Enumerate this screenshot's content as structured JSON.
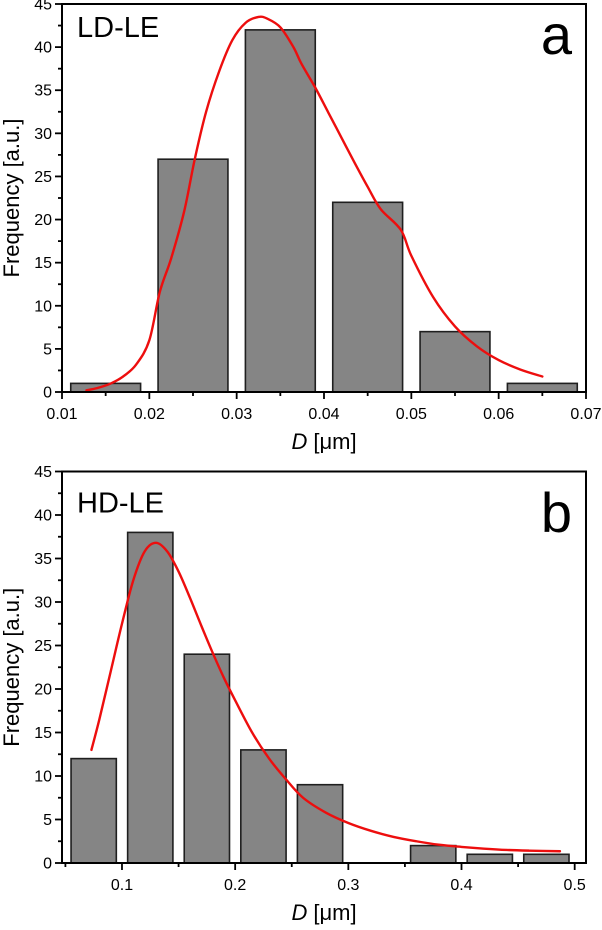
{
  "figure": {
    "background": "#ffffff",
    "description": "Two stacked particle-size histograms with red lognormal fit curves"
  },
  "colors": {
    "bar_fill": "#858585",
    "bar_border": "#1f1f1f",
    "curve": "#ed0e0e",
    "axis": "#000000",
    "text": "#000000",
    "background": "#ffffff"
  },
  "chart_data": [
    {
      "type": "bar",
      "panel_label": "a",
      "title": "LD-LE",
      "ylabel": "Frequency [a.u.]",
      "xlabel_italic": "D",
      "xlabel_unit": "[μm]",
      "xlim": [
        0.01,
        0.07
      ],
      "ylim": [
        0,
        45
      ],
      "grid": "off",
      "legend": "none",
      "x_tick_values": [
        0.01,
        0.02,
        0.03,
        0.04,
        0.05,
        0.06,
        0.07
      ],
      "x_tick_labels": [
        "0.01",
        "0.02",
        "0.03",
        "0.04",
        "0.05",
        "0.06",
        "0.07"
      ],
      "x_minor_ticks": [
        0.015,
        0.025,
        0.035,
        0.045,
        0.055,
        0.065
      ],
      "y_tick_values": [
        0,
        5,
        10,
        15,
        20,
        25,
        30,
        35,
        40,
        45
      ],
      "y_tick_labels": [
        "0",
        "5",
        "10",
        "15",
        "20",
        "25",
        "30",
        "35",
        "40",
        "45"
      ],
      "y_minor_ticks": [
        2.5,
        7.5,
        12.5,
        17.5,
        22.5,
        27.5,
        32.5,
        37.5,
        42.5
      ],
      "bin_centers": [
        0.015,
        0.025,
        0.035,
        0.045,
        0.055,
        0.065
      ],
      "bin_width": 0.01,
      "bar_width": 0.008,
      "values": [
        1,
        27,
        42,
        22,
        7,
        1
      ],
      "fit_curve": {
        "x": [
          0.0128,
          0.014,
          0.0155,
          0.017,
          0.0185,
          0.02,
          0.0212,
          0.0225,
          0.024,
          0.0252,
          0.0265,
          0.028,
          0.0295,
          0.031,
          0.0325,
          0.0335,
          0.035,
          0.0365,
          0.0374,
          0.039,
          0.0405,
          0.042,
          0.0435,
          0.045,
          0.0465,
          0.0488,
          0.05,
          0.0525,
          0.055,
          0.0575,
          0.06,
          0.0625,
          0.065
        ],
        "y": [
          0.2,
          0.45,
          0.95,
          1.8,
          3.2,
          6.0,
          11.6,
          15.5,
          21.0,
          27.0,
          32.5,
          37.2,
          40.8,
          42.8,
          43.5,
          43.3,
          42.3,
          40.0,
          38.1,
          35.3,
          32.4,
          29.5,
          26.6,
          23.8,
          21.2,
          18.8,
          15.8,
          11.0,
          7.6,
          5.3,
          3.7,
          2.6,
          1.8
        ]
      }
    },
    {
      "type": "bar",
      "panel_label": "b",
      "title": "HD-LE",
      "ylabel": "Frequency [a.u.]",
      "xlabel_italic": "D",
      "xlabel_unit": "[μm]",
      "xlim": [
        0.047,
        0.51
      ],
      "ylim": [
        0,
        45
      ],
      "grid": "off",
      "legend": "none",
      "x_tick_values": [
        0.1,
        0.2,
        0.3,
        0.4,
        0.5
      ],
      "x_tick_labels": [
        "0.1",
        "0.2",
        "0.3",
        "0.4",
        "0.5"
      ],
      "x_minor_ticks": [
        0.05,
        0.15,
        0.25,
        0.35,
        0.45
      ],
      "y_tick_values": [
        0,
        5,
        10,
        15,
        20,
        25,
        30,
        35,
        40,
        45
      ],
      "y_tick_labels": [
        "0",
        "5",
        "10",
        "15",
        "20",
        "25",
        "30",
        "35",
        "40",
        "45"
      ],
      "y_minor_ticks": [
        2.5,
        7.5,
        12.5,
        17.5,
        22.5,
        27.5,
        32.5,
        37.5,
        42.5
      ],
      "bin_centers": [
        0.075,
        0.125,
        0.175,
        0.225,
        0.275,
        0.325,
        0.375,
        0.425,
        0.475
      ],
      "bin_width": 0.05,
      "bar_width": 0.04,
      "values": [
        12,
        38,
        24,
        13,
        9,
        0,
        2,
        1,
        1
      ],
      "fit_curve": {
        "x": [
          0.073,
          0.08,
          0.09,
          0.1,
          0.11,
          0.12,
          0.13,
          0.14,
          0.15,
          0.16,
          0.17,
          0.18,
          0.19,
          0.2,
          0.215,
          0.23,
          0.245,
          0.26,
          0.28,
          0.3,
          0.32,
          0.34,
          0.36,
          0.38,
          0.4,
          0.42,
          0.44,
          0.46,
          0.487
        ],
        "y": [
          13.0,
          16.5,
          22.0,
          27.5,
          32.5,
          35.8,
          36.8,
          35.8,
          33.5,
          30.5,
          27.3,
          24.2,
          21.3,
          18.7,
          15.0,
          12.0,
          9.6,
          7.5,
          5.8,
          4.6,
          3.7,
          3.0,
          2.5,
          2.1,
          1.85,
          1.65,
          1.5,
          1.42,
          1.35
        ]
      }
    }
  ]
}
